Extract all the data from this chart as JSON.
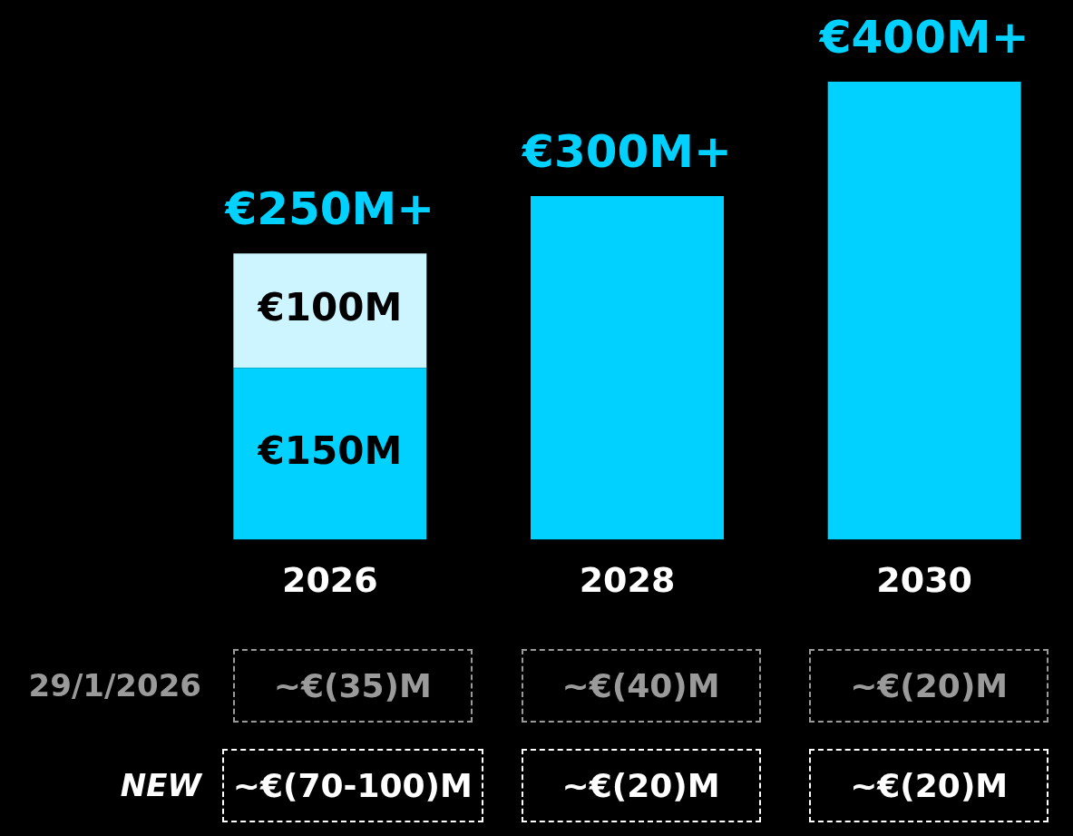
{
  "chart_data": {
    "type": "bar",
    "stacked": true,
    "categories": [
      "2026",
      "2028",
      "2030"
    ],
    "series": [
      {
        "color": "#00d1ff",
        "values": [
          150,
          300,
          400
        ],
        "value_labels": [
          "€150M",
          null,
          null
        ]
      },
      {
        "color": "#ccf5ff",
        "values": [
          100,
          null,
          null
        ],
        "value_labels": [
          "€100M",
          null,
          null
        ]
      }
    ],
    "totals": [
      "€250M+",
      "€300M+",
      "€400M+"
    ],
    "legend": false,
    "tick_labels": "x",
    "annotations": [
      "29/1/2026",
      "~€(35)M",
      "~€(40)M",
      "~€(20)M",
      "NEW",
      "~€(70-100)M",
      "~€(20)M",
      "~€(20)M"
    ]
  }
}
